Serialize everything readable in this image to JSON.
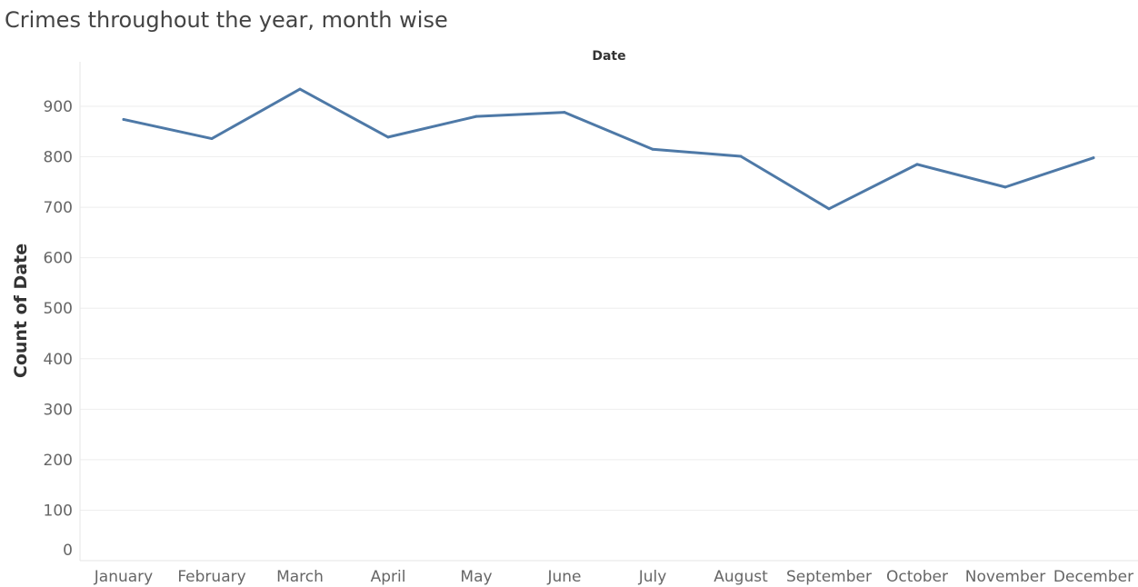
{
  "chart_data": {
    "type": "line",
    "title": "Crimes throughout the year, month wise",
    "xlabel": "Date",
    "ylabel": "Count of Date",
    "categories": [
      "January",
      "February",
      "March",
      "April",
      "May",
      "June",
      "July",
      "August",
      "September",
      "October",
      "November",
      "December"
    ],
    "series": [
      {
        "values": [
          874,
          836,
          934,
          839,
          880,
          888,
          815,
          801,
          697,
          785,
          740,
          798
        ]
      }
    ],
    "ylim": [
      0,
      1000
    ],
    "yticks": [
      0,
      100,
      200,
      300,
      400,
      500,
      600,
      700,
      800,
      900
    ],
    "grid": "horizontal",
    "line_color": "#4e79a7",
    "grid_color": "#eeeeee",
    "axis_color": "#e6e6e6"
  }
}
